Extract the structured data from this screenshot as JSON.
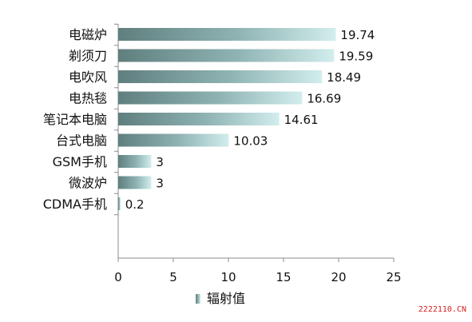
{
  "chart_data": {
    "type": "bar",
    "orientation": "horizontal",
    "categories": [
      "电磁炉",
      "剃须刀",
      "电吹风",
      "电热毯",
      "笔记本电脑",
      "台式电脑",
      "GSM手机",
      "微波炉",
      "CDMA手机"
    ],
    "series": [
      {
        "name": "辐射值",
        "values": [
          19.74,
          19.59,
          18.49,
          16.69,
          14.61,
          10.03,
          3,
          3,
          0.2
        ]
      }
    ],
    "value_labels": [
      "19.74",
      "19.59",
      "18.49",
      "16.69",
      "14.61",
      "10.03",
      "3",
      "3",
      "0.2"
    ],
    "xlim": [
      0,
      25
    ],
    "xticks": [
      "0",
      "5",
      "10",
      "15",
      "20",
      "25"
    ],
    "grid": false,
    "legend_position": "bottom",
    "title": "",
    "xlabel": "",
    "ylabel": "",
    "colors": {
      "bar_start": "#5f7f7e",
      "bar_mid": "#8fb3b3",
      "bar_end": "#d2eded",
      "axis": "#8c8c8c",
      "text": "#111111"
    }
  },
  "watermark": "2222110.CN"
}
